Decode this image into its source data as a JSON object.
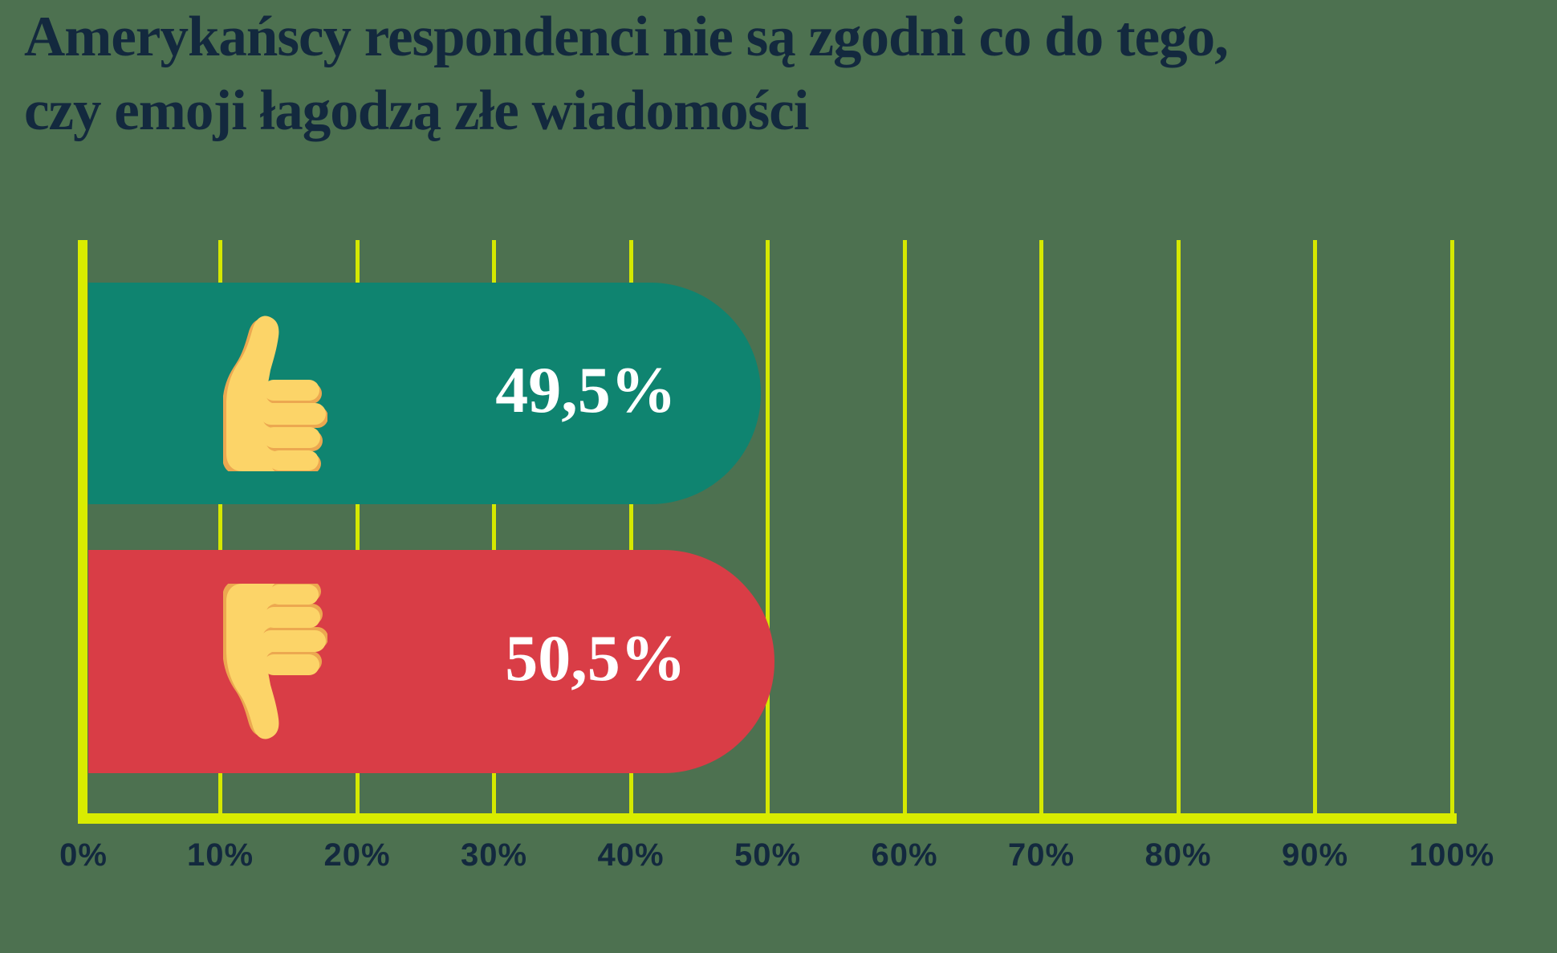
{
  "title": "Amerykańscy respondenci nie są zgodni co do tego,\nczy emoji łagodzą złe wiadomości",
  "colors": {
    "background": "#4d7150",
    "bar_positive": "#0f8470",
    "bar_negative": "#d93d46",
    "grid_yellow": "#d5e800",
    "axis_yellow": "#d9ec00",
    "text_navy": "#13293e",
    "value_text": "#ffffff",
    "emoji_yellow": "#fcd468",
    "emoji_shadow": "#eca850"
  },
  "chart_data": {
    "type": "bar",
    "orientation": "horizontal",
    "title": "Amerykańscy respondenci nie są zgodni co do tego, czy emoji łagodzą złe wiadomości",
    "categories": [
      "thumbs-up",
      "thumbs-down"
    ],
    "values": [
      49.5,
      50.5
    ],
    "value_labels": [
      "49,5%",
      "50,5%"
    ],
    "xlabel": "",
    "ylabel": "",
    "xlim": [
      0,
      100
    ],
    "x_ticks": [
      "0%",
      "10%",
      "20%",
      "30%",
      "40%",
      "50%",
      "60%",
      "70%",
      "80%",
      "90%",
      "100%"
    ],
    "grid": "vertical",
    "legend": "none"
  }
}
